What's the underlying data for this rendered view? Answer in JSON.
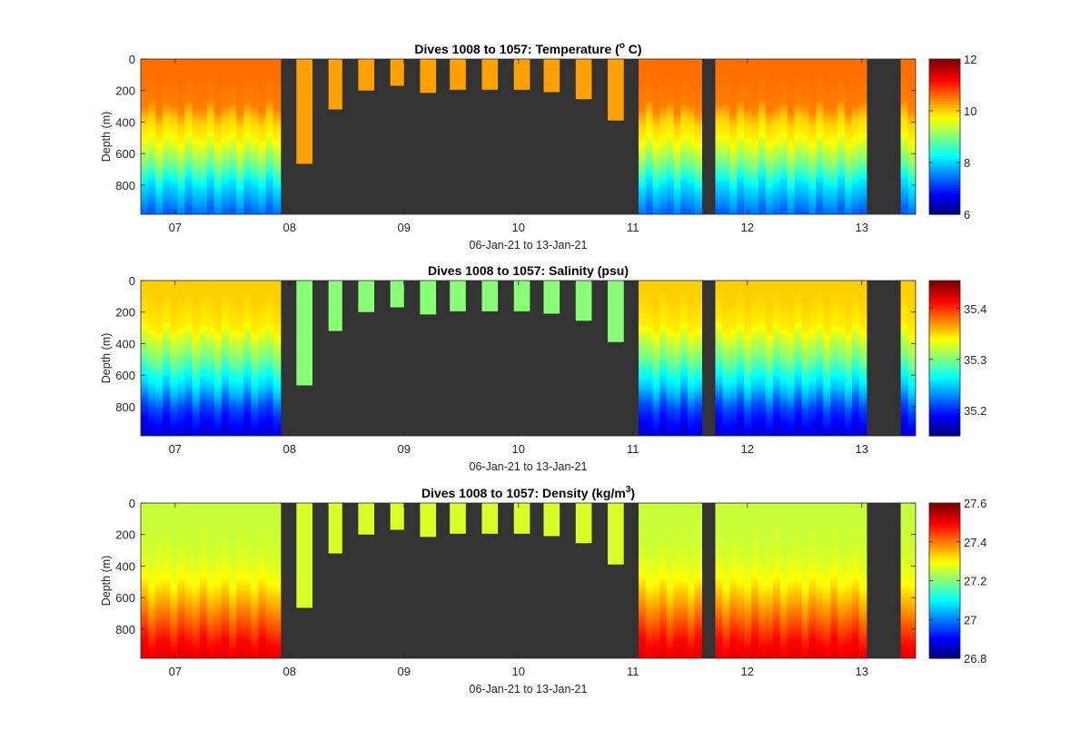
{
  "background_color": "#333333",
  "colormap": "jet",
  "xlabel": "06-Jan-21 to 13-Jan-21",
  "x_tick_labels": [
    "07",
    "08",
    "09",
    "10",
    "11",
    "12",
    "13"
  ],
  "y_tick_labels": [
    "0",
    "200",
    "400",
    "600",
    "800"
  ],
  "dives": [
    {
      "day": 6.7,
      "end": 7.92,
      "depth": 975,
      "type": "full"
    },
    {
      "day": 8.06,
      "end": 8.2,
      "depth": 665,
      "type": "shallow"
    },
    {
      "day": 8.34,
      "end": 8.46,
      "depth": 320,
      "type": "shallow"
    },
    {
      "day": 8.6,
      "end": 8.74,
      "depth": 200,
      "type": "shallow"
    },
    {
      "day": 8.88,
      "end": 9.0,
      "depth": 170,
      "type": "shallow"
    },
    {
      "day": 9.14,
      "end": 9.28,
      "depth": 215,
      "type": "shallow"
    },
    {
      "day": 9.4,
      "end": 9.54,
      "depth": 195,
      "type": "shallow"
    },
    {
      "day": 9.68,
      "end": 9.82,
      "depth": 195,
      "type": "shallow"
    },
    {
      "day": 9.96,
      "end": 10.1,
      "depth": 195,
      "type": "shallow"
    },
    {
      "day": 10.22,
      "end": 10.36,
      "depth": 210,
      "type": "shallow"
    },
    {
      "day": 10.5,
      "end": 10.64,
      "depth": 255,
      "type": "shallow"
    },
    {
      "day": 10.78,
      "end": 10.92,
      "depth": 390,
      "type": "shallow"
    },
    {
      "day": 11.05,
      "end": 11.6,
      "depth": 975,
      "type": "full"
    },
    {
      "day": 11.72,
      "end": 13.04,
      "depth": 975,
      "type": "full"
    },
    {
      "day": 13.34,
      "end": 13.47,
      "depth": 975,
      "type": "full"
    }
  ],
  "chart_data": [
    {
      "type": "heatmap",
      "title_main": "Dives 1008 to 1057: Temperature (",
      "title_sup": "o",
      "title_end": " C)",
      "ylabel": "Depth (m)",
      "xlabel": "06-Jan-21 to 13-Jan-21",
      "x_range": [
        6.7,
        13.47
      ],
      "x_ticks": [
        7,
        8,
        9,
        10,
        11,
        12,
        13
      ],
      "y_range": [
        0,
        985
      ],
      "y_reversed": true,
      "y_ticks": [
        0,
        200,
        400,
        600,
        800
      ],
      "clim": [
        6,
        12
      ],
      "colorbar_ticks": [
        6,
        8,
        10,
        12
      ],
      "colorbar_labels": [
        "6",
        "8",
        "10",
        "12"
      ],
      "profile_depths": [
        0,
        100,
        200,
        300,
        400,
        500,
        600,
        700,
        800,
        900,
        985
      ],
      "profile_values": [
        10.6,
        10.6,
        10.55,
        10.5,
        10.0,
        9.8,
        9.3,
        8.8,
        8.1,
        7.7,
        7.3
      ],
      "shallow_value": 10.3
    },
    {
      "type": "heatmap",
      "title_main": "Dives 1008 to 1057: Salinity (psu)",
      "title_sup": "",
      "title_end": "",
      "ylabel": "Depth (m)",
      "xlabel": "06-Jan-21 to 13-Jan-21",
      "x_range": [
        6.7,
        13.47
      ],
      "x_ticks": [
        7,
        8,
        9,
        10,
        11,
        12,
        13
      ],
      "y_range": [
        0,
        985
      ],
      "y_reversed": true,
      "y_ticks": [
        0,
        200,
        400,
        600,
        800
      ],
      "clim": [
        35.15,
        35.455
      ],
      "colorbar_ticks": [
        35.2,
        35.3,
        35.4
      ],
      "colorbar_labels": [
        "35.2",
        "35.3",
        "35.4"
      ],
      "profile_depths": [
        0,
        100,
        200,
        300,
        400,
        500,
        600,
        700,
        800,
        900,
        985
      ],
      "profile_values": [
        35.355,
        35.355,
        35.35,
        35.345,
        35.32,
        35.3,
        35.27,
        35.245,
        35.21,
        35.19,
        35.175
      ],
      "shallow_value": 35.305
    },
    {
      "type": "heatmap",
      "title_main": "Dives 1008 to 1057: Density (kg/m",
      "title_sup": "3",
      "title_end": ")",
      "ylabel": "Depth (m)",
      "xlabel": "06-Jan-21 to 13-Jan-21",
      "x_range": [
        6.7,
        13.47
      ],
      "x_ticks": [
        7,
        8,
        9,
        10,
        11,
        12,
        13
      ],
      "y_range": [
        0,
        985
      ],
      "y_reversed": true,
      "y_ticks": [
        0,
        200,
        400,
        600,
        800
      ],
      "clim": [
        26.8,
        27.6
      ],
      "colorbar_ticks": [
        26.8,
        27,
        27.2,
        27.4,
        27.6
      ],
      "colorbar_labels": [
        "26.8",
        "27",
        "27.2",
        "27.4",
        "27.6"
      ],
      "profile_depths": [
        0,
        100,
        200,
        300,
        400,
        500,
        600,
        700,
        800,
        900,
        985
      ],
      "profile_values": [
        27.255,
        27.255,
        27.26,
        27.265,
        27.28,
        27.3,
        27.35,
        27.4,
        27.45,
        27.5,
        27.52
      ],
      "shallow_value": 27.27
    }
  ]
}
